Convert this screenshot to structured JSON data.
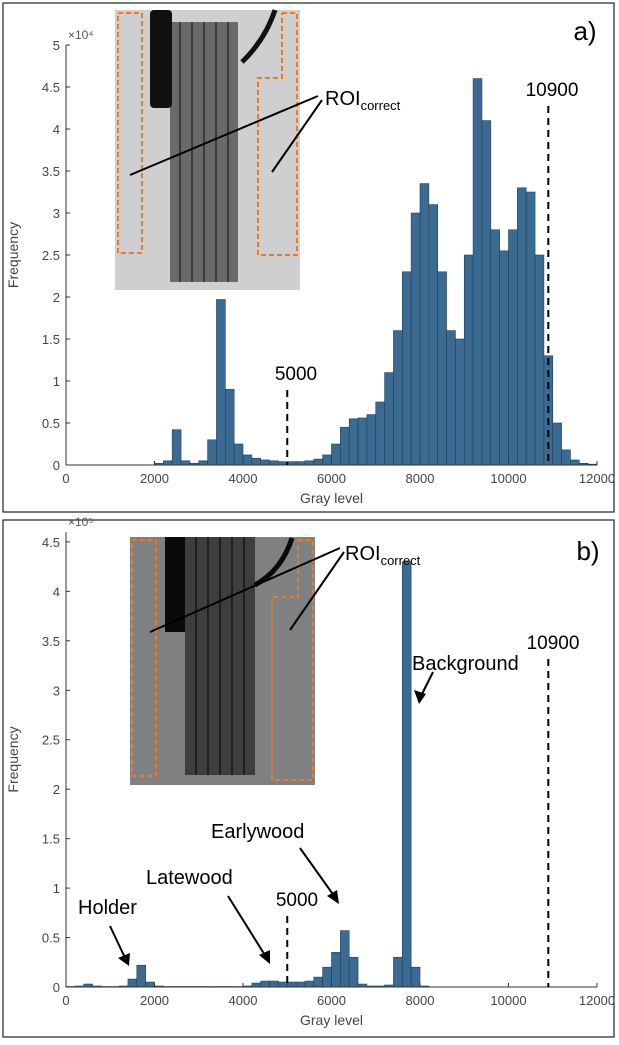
{
  "chart_data": [
    {
      "type": "histogram",
      "panel_label": "a)",
      "xlabel": "Gray level",
      "ylabel": "Frequency",
      "y_multiplier": "×10⁴",
      "color": "#3b6b92",
      "bins": [
        2000,
        2200,
        2400,
        2600,
        2800,
        3000,
        3200,
        3400,
        3600,
        3800,
        4000,
        4200,
        4400,
        4600,
        4800,
        5000,
        5200,
        5400,
        5600,
        5800,
        6000,
        6200,
        6400,
        6600,
        6800,
        7000,
        7200,
        7400,
        7600,
        7800,
        8000,
        8200,
        8400,
        8600,
        8800,
        9000,
        9200,
        9400,
        9600,
        9800,
        10000,
        10200,
        10400,
        10600,
        10800,
        11000,
        11200,
        11400,
        11600,
        11800,
        12000
      ],
      "values": [
        0.02,
        0.05,
        0.42,
        0.05,
        0.02,
        0.05,
        0.3,
        1.97,
        0.9,
        0.25,
        0.12,
        0.08,
        0.06,
        0.05,
        0.04,
        0.04,
        0.04,
        0.05,
        0.07,
        0.12,
        0.25,
        0.45,
        0.55,
        0.56,
        0.6,
        0.75,
        1.1,
        1.6,
        2.3,
        3.0,
        3.35,
        3.1,
        2.3,
        1.6,
        1.5,
        2.5,
        4.6,
        4.1,
        2.8,
        2.55,
        2.8,
        3.3,
        3.25,
        2.5,
        1.3,
        0.5,
        0.18,
        0.06,
        0.02,
        0.01
      ],
      "xlim": [
        0,
        12000
      ],
      "xticks": [
        0,
        2000,
        4000,
        6000,
        8000,
        10000,
        12000
      ],
      "ylim": [
        0,
        5
      ],
      "yticks": [
        0,
        0.5,
        1,
        1.5,
        2,
        2.5,
        3,
        3.5,
        4,
        4.5,
        5
      ],
      "thresholds": [
        5000,
        10900
      ],
      "annotations": [
        {
          "text": "ROI",
          "subscript": "correct"
        }
      ]
    },
    {
      "type": "histogram",
      "panel_label": "b)",
      "xlabel": "Gray level",
      "ylabel": "Frequency",
      "y_multiplier": "×10⁵",
      "color": "#3b6b92",
      "bins": [
        0,
        200,
        400,
        600,
        800,
        1000,
        1200,
        1400,
        1600,
        1800,
        2000,
        2200,
        2400,
        2600,
        2800,
        3000,
        3200,
        3400,
        3600,
        3800,
        4000,
        4200,
        4400,
        4600,
        4800,
        5000,
        5200,
        5400,
        5600,
        5800,
        6000,
        6200,
        6400,
        6600,
        6800,
        7000,
        7200,
        7400,
        7600,
        7800,
        8000,
        8200,
        8400,
        8600,
        8800,
        9000,
        9200,
        9400,
        9600,
        9800,
        10000,
        10200,
        10400,
        10600,
        10800,
        11000,
        11200,
        11400,
        11600,
        11800,
        12000
      ],
      "values": [
        0.005,
        0.01,
        0.03,
        0.01,
        0.005,
        0.005,
        0.01,
        0.08,
        0.22,
        0.05,
        0.01,
        0.005,
        0.005,
        0.005,
        0.005,
        0.005,
        0.005,
        0.005,
        0.005,
        0.005,
        0.01,
        0.04,
        0.06,
        0.06,
        0.05,
        0.05,
        0.05,
        0.06,
        0.1,
        0.2,
        0.35,
        0.57,
        0.3,
        0.03,
        0.01,
        0.01,
        0.02,
        0.3,
        4.3,
        0.2,
        0.01,
        0,
        0,
        0,
        0,
        0,
        0,
        0,
        0,
        0,
        0,
        0,
        0,
        0,
        0,
        0,
        0,
        0,
        0,
        0
      ],
      "xlim": [
        0,
        12000
      ],
      "xticks": [
        0,
        2000,
        4000,
        6000,
        8000,
        10000,
        12000
      ],
      "ylim": [
        0,
        4.6
      ],
      "yticks": [
        0,
        0.5,
        1,
        1.5,
        2,
        2.5,
        3,
        3.5,
        4,
        4.5
      ],
      "thresholds": [
        5000,
        10900
      ],
      "annotations": [
        {
          "text": "ROI",
          "subscript": "correct"
        },
        {
          "text": "Background"
        },
        {
          "text": "Earlywood"
        },
        {
          "text": "Latewood"
        },
        {
          "text": "Holder"
        }
      ]
    }
  ]
}
